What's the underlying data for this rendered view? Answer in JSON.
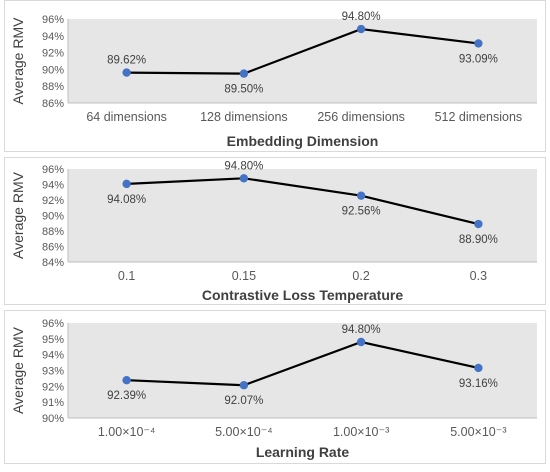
{
  "chart_data": [
    {
      "type": "line",
      "xlabel": "Embedding Dimension",
      "ylabel": "Average RMV",
      "categories": [
        "64 dimensions",
        "128 dimensions",
        "256 dimensions",
        "512 dimensions"
      ],
      "values": [
        89.62,
        89.5,
        94.8,
        93.09
      ],
      "data_labels": [
        "89.62%",
        "89.50%",
        "94.80%",
        "93.09%"
      ],
      "ylim": [
        86,
        96
      ],
      "yticks": [
        "86%",
        "88%",
        "90%",
        "92%",
        "94%",
        "96%"
      ],
      "ytick_values": [
        86,
        88,
        90,
        92,
        94,
        96
      ],
      "grid": false
    },
    {
      "type": "line",
      "xlabel": "Contrastive Loss Temperature",
      "ylabel": "Average RMV",
      "categories": [
        "0.1",
        "0.15",
        "0.2",
        "0.3"
      ],
      "values": [
        94.08,
        94.8,
        92.56,
        88.9
      ],
      "data_labels": [
        "94.08%",
        "94.80%",
        "92.56%",
        "88.90%"
      ],
      "ylim": [
        84,
        96
      ],
      "yticks": [
        "84%",
        "86%",
        "88%",
        "90%",
        "92%",
        "94%",
        "96%"
      ],
      "ytick_values": [
        84,
        86,
        88,
        90,
        92,
        94,
        96
      ],
      "grid": false
    },
    {
      "type": "line",
      "xlabel": "Learning Rate",
      "ylabel": "Average RMV",
      "categories": [
        "1.00×10⁻⁴",
        "5.00×10⁻⁴",
        "1.00×10⁻³",
        "5.00×10⁻³"
      ],
      "values": [
        92.39,
        92.07,
        94.8,
        93.16
      ],
      "data_labels": [
        "92.39%",
        "92.07%",
        "94.80%",
        "93.16%"
      ],
      "ylim": [
        90,
        96
      ],
      "yticks": [
        "90%",
        "91%",
        "92%",
        "93%",
        "94%",
        "95%",
        "96%"
      ],
      "ytick_values": [
        90,
        91,
        92,
        93,
        94,
        95,
        96
      ],
      "grid": false
    }
  ],
  "colors": {
    "marker": "#4472c4",
    "line": "#000000",
    "plot_background": "#e6e6e6"
  }
}
